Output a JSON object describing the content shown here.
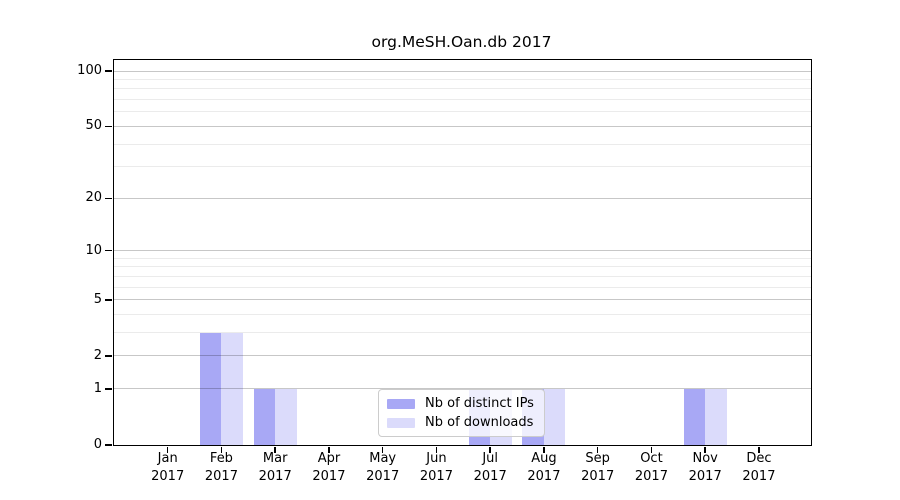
{
  "chart_data": {
    "type": "bar",
    "title": "org.MeSH.Oan.db 2017",
    "categories": [
      "Jan",
      "Feb",
      "Mar",
      "Apr",
      "May",
      "Jun",
      "Jul",
      "Aug",
      "Sep",
      "Oct",
      "Nov",
      "Dec"
    ],
    "category_year": "2017",
    "series": [
      {
        "name": "Nb of distinct IPs",
        "color": "#a8a8f5",
        "values": [
          0,
          3,
          1,
          0,
          0,
          0,
          1,
          1,
          0,
          0,
          1,
          0
        ]
      },
      {
        "name": "Nb of downloads",
        "color": "#dbdbfb",
        "values": [
          0,
          3,
          1,
          0,
          0,
          0,
          1,
          1,
          0,
          0,
          1,
          0
        ]
      }
    ],
    "yscale": "log1p",
    "ylim": [
      0,
      115
    ],
    "xlabel": "",
    "ylabel": "",
    "y_ticks": [
      0,
      1,
      2,
      5,
      10,
      20,
      50,
      100
    ],
    "y_minor_gridlines": [
      3,
      4,
      6,
      7,
      8,
      9,
      30,
      40,
      60,
      70,
      80,
      90
    ],
    "grid": "on",
    "legend_position": "lower center",
    "colors": {
      "major_grid": "rgba(0,0,0,0.22)",
      "minor_grid": "rgba(0,0,0,0.08)",
      "axis": "#000000",
      "background": "#ffffff"
    }
  }
}
